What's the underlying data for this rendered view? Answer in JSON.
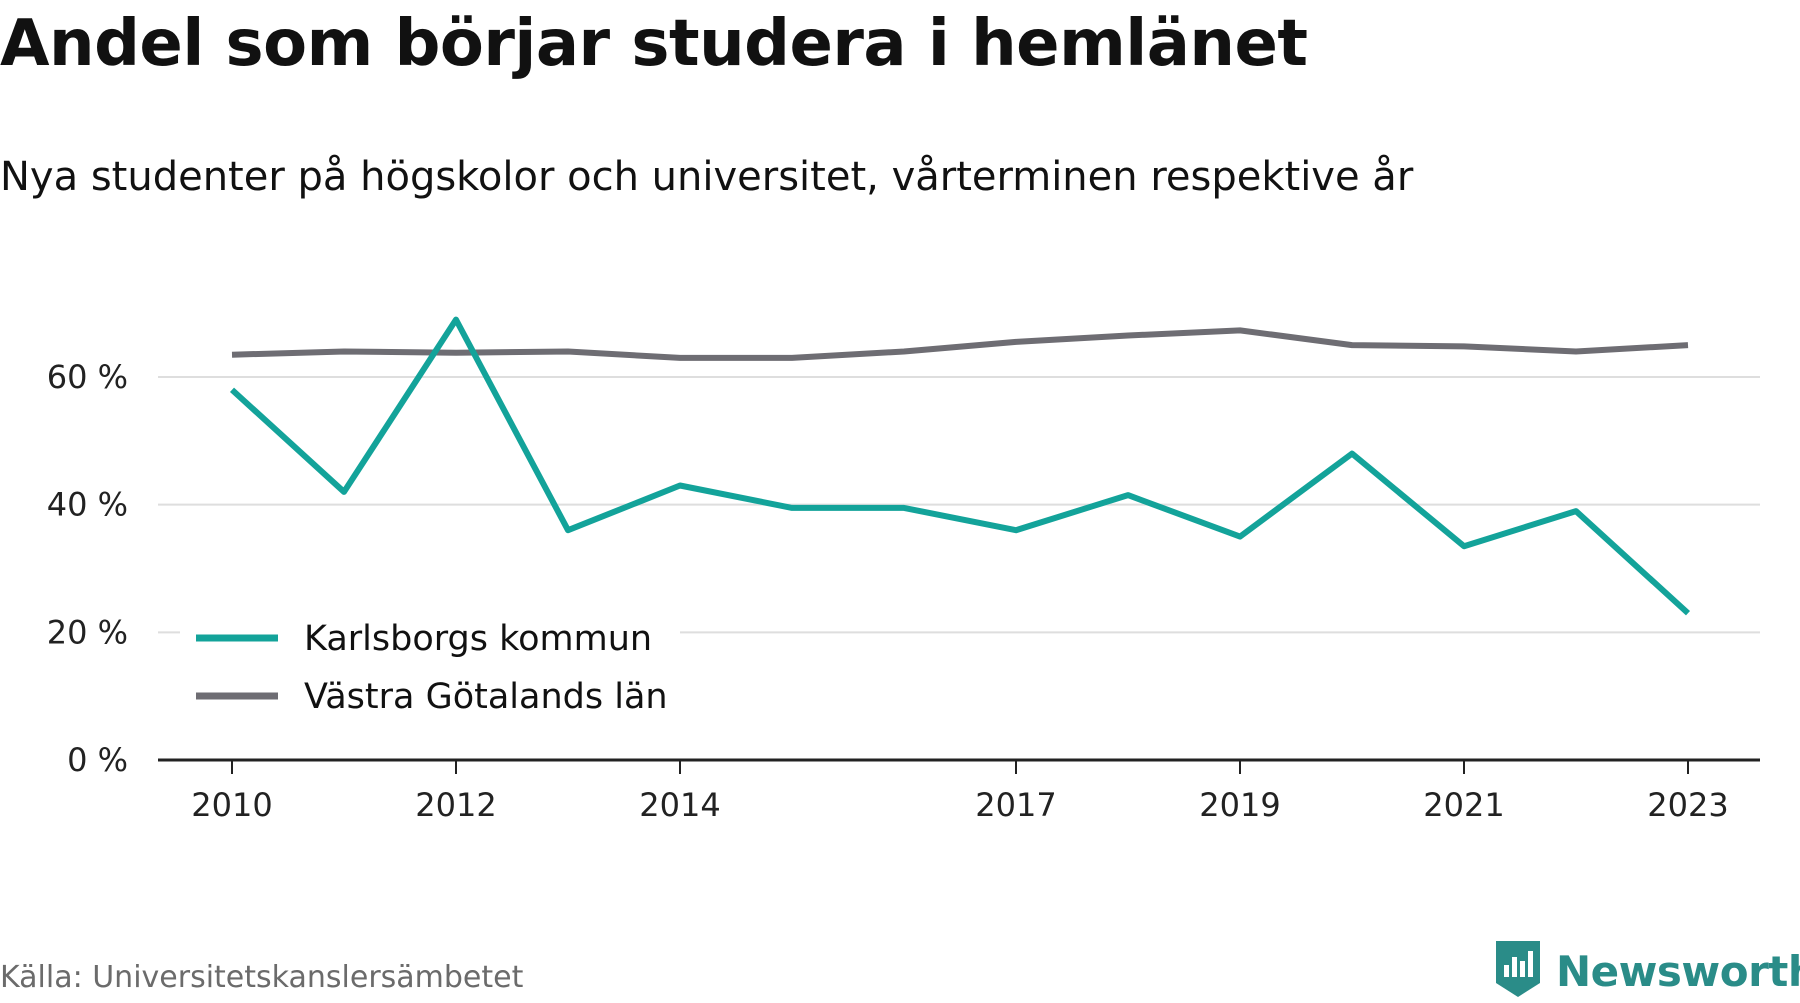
{
  "title": "Andel som börjar studera i hemlänet",
  "subtitle": "Nya studenter på högskolor och universitet, vårterminen respektive år",
  "source": "Källa: Universitetskanslersämbetet",
  "brand": {
    "name": "Newsworthy",
    "color": "#2a8c88",
    "icon": "newsworthy-logo-icon"
  },
  "chart_data": {
    "type": "line",
    "x": [
      2010,
      2011,
      2012,
      2013,
      2014,
      2015,
      2016,
      2017,
      2018,
      2019,
      2020,
      2021,
      2022,
      2023
    ],
    "x_tick_labels": [
      "2010",
      "2012",
      "2014",
      "2017",
      "2019",
      "2021",
      "2023"
    ],
    "ylim": [
      0,
      70
    ],
    "y_ticks": [
      0,
      20,
      40,
      60
    ],
    "y_tick_labels": [
      "0 %",
      "20 %",
      "40 %",
      "60 %"
    ],
    "grid": true,
    "legend_position": "bottom-left",
    "series": [
      {
        "name": "Karlsborgs kommun",
        "color": "#13a39a",
        "values": [
          58,
          42,
          69,
          36,
          43,
          39.5,
          39.5,
          36,
          41.5,
          35,
          48,
          33.5,
          39,
          23
        ]
      },
      {
        "name": "Västra Götalands län",
        "color": "#6e6d73",
        "values": [
          63.5,
          64,
          63.8,
          64,
          63,
          63,
          64,
          65.5,
          66.5,
          67.3,
          65,
          64.8,
          64,
          65
        ]
      }
    ]
  }
}
